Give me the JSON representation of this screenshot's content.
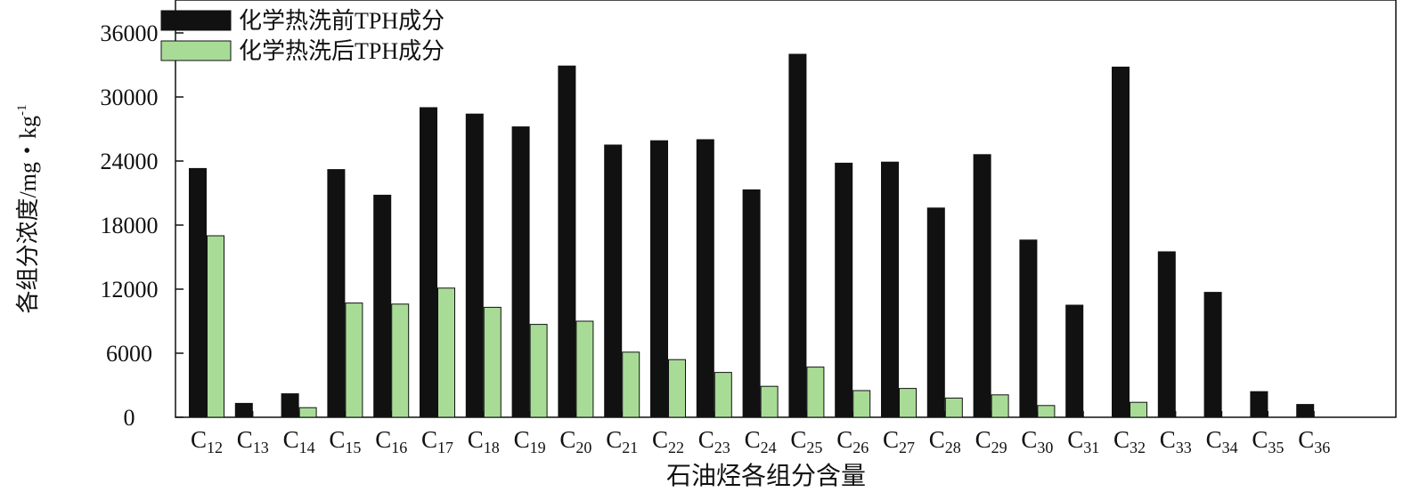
{
  "chart_data": {
    "type": "bar",
    "categories": [
      {
        "base": "C",
        "sub": "12"
      },
      {
        "base": "C",
        "sub": "13"
      },
      {
        "base": "C",
        "sub": "14"
      },
      {
        "base": "C",
        "sub": "15"
      },
      {
        "base": "C",
        "sub": "16"
      },
      {
        "base": "C",
        "sub": "17"
      },
      {
        "base": "C",
        "sub": "18"
      },
      {
        "base": "C",
        "sub": "19"
      },
      {
        "base": "C",
        "sub": "20"
      },
      {
        "base": "C",
        "sub": "21"
      },
      {
        "base": "C",
        "sub": "22"
      },
      {
        "base": "C",
        "sub": "23"
      },
      {
        "base": "C",
        "sub": "24"
      },
      {
        "base": "C",
        "sub": "25"
      },
      {
        "base": "C",
        "sub": "26"
      },
      {
        "base": "C",
        "sub": "27"
      },
      {
        "base": "C",
        "sub": "28"
      },
      {
        "base": "C",
        "sub": "29"
      },
      {
        "base": "C",
        "sub": "30"
      },
      {
        "base": "C",
        "sub": "31"
      },
      {
        "base": "C",
        "sub": "32"
      },
      {
        "base": "C",
        "sub": "33"
      },
      {
        "base": "C",
        "sub": "34"
      },
      {
        "base": "C",
        "sub": "35"
      },
      {
        "base": "C",
        "sub": "36"
      }
    ],
    "series": [
      {
        "name": "化学热洗前TPH成分",
        "color": "#111111",
        "values": [
          23300,
          1300,
          2200,
          23200,
          20800,
          29000,
          28400,
          27200,
          32900,
          25500,
          25900,
          26000,
          21300,
          34000,
          23800,
          23900,
          19600,
          24600,
          16600,
          10500,
          32800,
          15500,
          11700,
          2400,
          1200
        ]
      },
      {
        "name": "化学热洗后TPH成分",
        "color": "#a8dc96",
        "values": [
          17000,
          0,
          900,
          10700,
          10600,
          12100,
          10300,
          8700,
          9000,
          6100,
          5400,
          4200,
          2900,
          4700,
          2500,
          2700,
          1800,
          2100,
          1100,
          0,
          1400,
          0,
          0,
          0,
          0
        ]
      }
    ],
    "ylabel": {
      "text": "各组分浓度/mg・kg",
      "sup": "-1"
    },
    "xlabel": "石油烃各组分含量",
    "ylim": [
      0,
      36000
    ],
    "yticks": [
      0,
      6000,
      12000,
      18000,
      24000,
      30000,
      36000
    ],
    "legend_position": "top-left",
    "grid": false
  }
}
